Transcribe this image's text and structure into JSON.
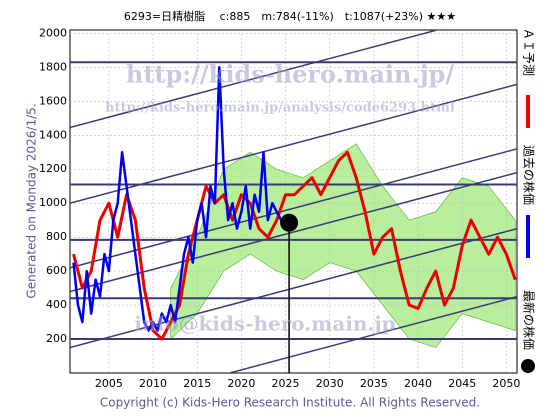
{
  "chart_data": {
    "type": "line",
    "title": "6293=日精樹脂　 c:885　m:784(-11%)　t:1087(+23%) ★★★",
    "side_text": "Generated on Monday 2026/1/5.",
    "footer": "Copyright (c) Kids-Hero Research Institute. All Rights Reserved.",
    "watermarks": [
      "http://kids-hero.main.jp/",
      "http://kids-hero.main.jp/analysis/code6293.html",
      "info@kids-hero.main.jp"
    ],
    "xlim": [
      2000.6,
      2051.2
    ],
    "ylim": [
      0,
      2020
    ],
    "xticks": [
      2005,
      2010,
      2015,
      2020,
      2025,
      2030,
      2035,
      2040,
      2045,
      2050
    ],
    "yticks": [
      200,
      400,
      600,
      800,
      1000,
      1200,
      1400,
      1600,
      1800,
      2000
    ],
    "grid": true,
    "band": {
      "color": "#7ee04a",
      "x": [
        2012,
        2015,
        2018,
        2021,
        2024,
        2027,
        2030,
        2033,
        2036,
        2039,
        2042,
        2045,
        2048,
        2051
      ],
      "upper": [
        500,
        800,
        1200,
        1300,
        1200,
        1150,
        1250,
        1350,
        1100,
        900,
        950,
        1150,
        1100,
        900
      ],
      "lower": [
        200,
        350,
        600,
        700,
        600,
        550,
        650,
        600,
        400,
        200,
        150,
        350,
        300,
        250
      ]
    },
    "levels": [
      1830,
      1110,
      784,
      440,
      200
    ],
    "trend_lines": {
      "x": [
        2000.6,
        2051.2
      ],
      "series": [
        [
          1446,
          2145
        ],
        [
          1000,
          1700
        ],
        [
          620,
          1320
        ],
        [
          480,
          1180
        ],
        [
          150,
          850
        ],
        [
          -250,
          450
        ]
      ]
    },
    "series": [
      {
        "name": "過去の株価",
        "color": "#0000ee",
        "x": [
          2001,
          2001.5,
          2002,
          2002.5,
          2003,
          2003.5,
          2004,
          2004.5,
          2005,
          2005.5,
          2006,
          2006.5,
          2007,
          2007.5,
          2008,
          2008.5,
          2009,
          2009.5,
          2010,
          2010.5,
          2011,
          2011.5,
          2012,
          2012.5,
          2013,
          2013.5,
          2014,
          2014.5,
          2015,
          2015.5,
          2016,
          2016.5,
          2017,
          2017.5,
          2018,
          2018.5,
          2019,
          2019.5,
          2020,
          2020.5,
          2021,
          2021.5,
          2022,
          2022.5,
          2023,
          2023.5,
          2024,
          2024.5,
          2025,
          2025.5
        ],
        "values": [
          650,
          400,
          300,
          600,
          350,
          550,
          450,
          700,
          600,
          900,
          1000,
          1300,
          1100,
          900,
          700,
          500,
          300,
          250,
          300,
          250,
          350,
          300,
          400,
          300,
          500,
          700,
          800,
          650,
          900,
          1000,
          800,
          1100,
          1000,
          1800,
          1200,
          900,
          1000,
          850,
          950,
          1100,
          850,
          1050,
          950,
          1300,
          900,
          1000,
          950,
          900,
          850,
          900
        ]
      },
      {
        "name": "ＡＩ予測",
        "color": "#ee0000",
        "x": [
          2001,
          2002,
          2003,
          2004,
          2005,
          2006,
          2007,
          2008,
          2009,
          2010,
          2011,
          2012,
          2013,
          2014,
          2015,
          2016,
          2017,
          2018,
          2019,
          2020,
          2021,
          2022,
          2023,
          2024,
          2025,
          2026,
          2027,
          2028,
          2029,
          2030,
          2031,
          2032,
          2033,
          2034,
          2035,
          2036,
          2037,
          2038,
          2039,
          2040,
          2041,
          2042,
          2043,
          2044,
          2045,
          2046,
          2047,
          2048,
          2049,
          2050,
          2051
        ],
        "values": [
          700,
          500,
          600,
          900,
          1000,
          800,
          1050,
          900,
          500,
          250,
          200,
          300,
          400,
          700,
          900,
          1100,
          1000,
          1050,
          900,
          1050,
          1000,
          850,
          800,
          900,
          1050,
          1050,
          1100,
          1150,
          1050,
          1150,
          1250,
          1300,
          1150,
          950,
          700,
          800,
          850,
          600,
          400,
          380,
          500,
          600,
          400,
          500,
          750,
          900,
          800,
          700,
          800,
          700,
          550
        ]
      }
    ],
    "latest": {
      "name": "最新の株価",
      "x": 2025.4,
      "value": 885,
      "color": "#000000"
    }
  }
}
